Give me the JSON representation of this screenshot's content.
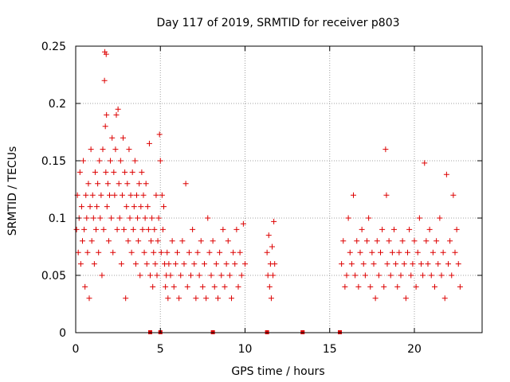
{
  "chart_data": {
    "type": "scatter",
    "title": "Day 117 of 2019, SRMTID for receiver p803",
    "xlabel": "GPS time / hours",
    "ylabel": "SRMTID / TECUs",
    "xlim": [
      0,
      24
    ],
    "ylim": [
      0,
      0.25
    ],
    "grid": true,
    "marker": "+",
    "color": "#dd0000",
    "x_ticks": [
      {
        "value": 0,
        "label": "0"
      },
      {
        "value": 5,
        "label": "5"
      },
      {
        "value": 10,
        "label": "10"
      },
      {
        "value": 15,
        "label": "15"
      },
      {
        "value": 20,
        "label": "20"
      }
    ],
    "y_ticks": [
      {
        "value": 0,
        "label": "0"
      },
      {
        "value": 0.05,
        "label": "0.05"
      },
      {
        "value": 0.1,
        "label": "0.1"
      },
      {
        "value": 0.15,
        "label": "0.15"
      },
      {
        "value": 0.2,
        "label": "0.2"
      },
      {
        "value": 0.25,
        "label": "0.25"
      }
    ],
    "series": [
      {
        "name": "SRMTID",
        "points": [
          [
            0.05,
            0.09
          ],
          [
            0.1,
            0.12
          ],
          [
            0.15,
            0.07
          ],
          [
            0.2,
            0.1
          ],
          [
            0.25,
            0.14
          ],
          [
            0.3,
            0.06
          ],
          [
            0.35,
            0.11
          ],
          [
            0.4,
            0.08
          ],
          [
            0.45,
            0.15
          ],
          [
            0.5,
            0.09
          ],
          [
            0.55,
            0.04
          ],
          [
            0.6,
            0.12
          ],
          [
            0.65,
            0.1
          ],
          [
            0.7,
            0.07
          ],
          [
            0.75,
            0.13
          ],
          [
            0.8,
            0.03
          ],
          [
            0.85,
            0.11
          ],
          [
            0.9,
            0.16
          ],
          [
            0.95,
            0.08
          ],
          [
            1.0,
            0.12
          ],
          [
            1.05,
            0.1
          ],
          [
            1.1,
            0.06
          ],
          [
            1.15,
            0.14
          ],
          [
            1.2,
            0.09
          ],
          [
            1.25,
            0.11
          ],
          [
            1.3,
            0.13
          ],
          [
            1.35,
            0.07
          ],
          [
            1.4,
            0.15
          ],
          [
            1.45,
            0.1
          ],
          [
            1.5,
            0.12
          ],
          [
            1.55,
            0.05
          ],
          [
            1.6,
            0.16
          ],
          [
            1.65,
            0.09
          ],
          [
            1.7,
            0.22
          ],
          [
            1.72,
            0.245
          ],
          [
            1.75,
            0.18
          ],
          [
            1.78,
            0.14
          ],
          [
            1.8,
            0.243
          ],
          [
            1.82,
            0.19
          ],
          [
            1.85,
            0.11
          ],
          [
            1.9,
            0.13
          ],
          [
            1.95,
            0.08
          ],
          [
            2.0,
            0.12
          ],
          [
            2.05,
            0.15
          ],
          [
            2.1,
            0.1
          ],
          [
            2.15,
            0.17
          ],
          [
            2.2,
            0.07
          ],
          [
            2.25,
            0.14
          ],
          [
            2.3,
            0.12
          ],
          [
            2.35,
            0.16
          ],
          [
            2.4,
            0.19
          ],
          [
            2.45,
            0.09
          ],
          [
            2.5,
            0.195
          ],
          [
            2.55,
            0.13
          ],
          [
            2.6,
            0.1
          ],
          [
            2.65,
            0.15
          ],
          [
            2.7,
            0.06
          ],
          [
            2.75,
            0.12
          ],
          [
            2.8,
            0.17
          ],
          [
            2.85,
            0.09
          ],
          [
            2.9,
            0.14
          ],
          [
            2.95,
            0.03
          ],
          [
            3.0,
            0.11
          ],
          [
            3.05,
            0.13
          ],
          [
            3.1,
            0.08
          ],
          [
            3.15,
            0.16
          ],
          [
            3.2,
            0.1
          ],
          [
            3.25,
            0.12
          ],
          [
            3.3,
            0.07
          ],
          [
            3.35,
            0.14
          ],
          [
            3.4,
            0.09
          ],
          [
            3.45,
            0.11
          ],
          [
            3.5,
            0.15
          ],
          [
            3.55,
            0.06
          ],
          [
            3.6,
            0.12
          ],
          [
            3.65,
            0.1
          ],
          [
            3.7,
            0.08
          ],
          [
            3.75,
            0.13
          ],
          [
            3.8,
            0.05
          ],
          [
            3.85,
            0.11
          ],
          [
            3.9,
            0.14
          ],
          [
            3.95,
            0.09
          ],
          [
            4.0,
            0.12
          ],
          [
            4.05,
            0.07
          ],
          [
            4.1,
            0.1
          ],
          [
            4.15,
            0.13
          ],
          [
            4.2,
            0.06
          ],
          [
            4.25,
            0.11
          ],
          [
            4.3,
            0.09
          ],
          [
            4.35,
            0.165
          ],
          [
            4.4,
            0.05
          ],
          [
            4.45,
            0.08
          ],
          [
            4.5,
            0.1
          ],
          [
            4.55,
            0.04
          ],
          [
            4.6,
            0.07
          ],
          [
            4.65,
            0.09
          ],
          [
            4.7,
            0.06
          ],
          [
            4.75,
            0.12
          ],
          [
            4.8,
            0.05
          ],
          [
            4.85,
            0.08
          ],
          [
            4.9,
            0.1
          ],
          [
            4.95,
            0.173
          ],
          [
            5.0,
            0.15
          ],
          [
            5.05,
            0.07
          ],
          [
            5.1,
            0.12
          ],
          [
            5.15,
            0.09
          ],
          [
            5.2,
            0.11
          ],
          [
            5.25,
            0.06
          ],
          [
            5.3,
            0.04
          ],
          [
            5.35,
            0.05
          ],
          [
            5.4,
            0.07
          ],
          [
            5.45,
            0.03
          ],
          [
            5.5,
            0.06
          ],
          [
            5.6,
            0.05
          ],
          [
            5.7,
            0.08
          ],
          [
            5.8,
            0.04
          ],
          [
            5.9,
            0.06
          ],
          [
            6.0,
            0.07
          ],
          [
            6.1,
            0.03
          ],
          [
            6.2,
            0.05
          ],
          [
            6.3,
            0.08
          ],
          [
            6.4,
            0.06
          ],
          [
            6.5,
            0.13
          ],
          [
            6.6,
            0.04
          ],
          [
            6.7,
            0.07
          ],
          [
            6.8,
            0.05
          ],
          [
            6.9,
            0.09
          ],
          [
            7.0,
            0.06
          ],
          [
            7.1,
            0.03
          ],
          [
            7.2,
            0.07
          ],
          [
            7.3,
            0.05
          ],
          [
            7.4,
            0.08
          ],
          [
            7.5,
            0.04
          ],
          [
            7.6,
            0.06
          ],
          [
            7.7,
            0.03
          ],
          [
            7.8,
            0.1
          ],
          [
            7.9,
            0.07
          ],
          [
            8.0,
            0.05
          ],
          [
            8.1,
            0.08
          ],
          [
            8.2,
            0.04
          ],
          [
            8.3,
            0.06
          ],
          [
            8.4,
            0.03
          ],
          [
            8.5,
            0.07
          ],
          [
            8.6,
            0.05
          ],
          [
            8.7,
            0.09
          ],
          [
            8.8,
            0.04
          ],
          [
            8.9,
            0.06
          ],
          [
            9.0,
            0.08
          ],
          [
            9.1,
            0.05
          ],
          [
            9.2,
            0.03
          ],
          [
            9.3,
            0.07
          ],
          [
            9.4,
            0.06
          ],
          [
            9.5,
            0.09
          ],
          [
            9.6,
            0.04
          ],
          [
            9.7,
            0.07
          ],
          [
            9.8,
            0.05
          ],
          [
            9.9,
            0.095
          ],
          [
            10.0,
            0.06
          ],
          [
            11.3,
            0.07
          ],
          [
            11.35,
            0.05
          ],
          [
            11.4,
            0.085
          ],
          [
            11.45,
            0.04
          ],
          [
            11.5,
            0.06
          ],
          [
            11.55,
            0.03
          ],
          [
            11.6,
            0.075
          ],
          [
            11.65,
            0.05
          ],
          [
            11.7,
            0.097
          ],
          [
            11.75,
            0.06
          ],
          [
            15.7,
            0.06
          ],
          [
            15.8,
            0.08
          ],
          [
            15.9,
            0.04
          ],
          [
            16.0,
            0.05
          ],
          [
            16.1,
            0.1
          ],
          [
            16.2,
            0.07
          ],
          [
            16.3,
            0.06
          ],
          [
            16.4,
            0.12
          ],
          [
            16.5,
            0.05
          ],
          [
            16.6,
            0.08
          ],
          [
            16.7,
            0.04
          ],
          [
            16.8,
            0.07
          ],
          [
            16.9,
            0.09
          ],
          [
            17.0,
            0.06
          ],
          [
            17.1,
            0.05
          ],
          [
            17.2,
            0.08
          ],
          [
            17.3,
            0.1
          ],
          [
            17.4,
            0.04
          ],
          [
            17.5,
            0.07
          ],
          [
            17.6,
            0.06
          ],
          [
            17.7,
            0.03
          ],
          [
            17.8,
            0.08
          ],
          [
            17.9,
            0.05
          ],
          [
            18.0,
            0.07
          ],
          [
            18.1,
            0.09
          ],
          [
            18.2,
            0.04
          ],
          [
            18.3,
            0.16
          ],
          [
            18.35,
            0.12
          ],
          [
            18.4,
            0.06
          ],
          [
            18.5,
            0.08
          ],
          [
            18.6,
            0.05
          ],
          [
            18.7,
            0.07
          ],
          [
            18.8,
            0.09
          ],
          [
            18.9,
            0.06
          ],
          [
            19.0,
            0.04
          ],
          [
            19.1,
            0.07
          ],
          [
            19.2,
            0.05
          ],
          [
            19.3,
            0.08
          ],
          [
            19.4,
            0.06
          ],
          [
            19.5,
            0.03
          ],
          [
            19.6,
            0.07
          ],
          [
            19.7,
            0.09
          ],
          [
            19.8,
            0.05
          ],
          [
            19.9,
            0.06
          ],
          [
            20.0,
            0.08
          ],
          [
            20.1,
            0.04
          ],
          [
            20.2,
            0.07
          ],
          [
            20.3,
            0.1
          ],
          [
            20.4,
            0.06
          ],
          [
            20.5,
            0.05
          ],
          [
            20.6,
            0.148
          ],
          [
            20.7,
            0.08
          ],
          [
            20.8,
            0.06
          ],
          [
            20.9,
            0.09
          ],
          [
            21.0,
            0.05
          ],
          [
            21.1,
            0.07
          ],
          [
            21.2,
            0.04
          ],
          [
            21.3,
            0.08
          ],
          [
            21.4,
            0.06
          ],
          [
            21.5,
            0.1
          ],
          [
            21.6,
            0.05
          ],
          [
            21.7,
            0.07
          ],
          [
            21.8,
            0.03
          ],
          [
            21.9,
            0.138
          ],
          [
            22.0,
            0.06
          ],
          [
            22.1,
            0.08
          ],
          [
            22.2,
            0.05
          ],
          [
            22.3,
            0.12
          ],
          [
            22.4,
            0.07
          ],
          [
            22.5,
            0.09
          ],
          [
            22.6,
            0.06
          ],
          [
            22.7,
            0.04
          ]
        ]
      }
    ],
    "zero_markers_x": [
      4.4,
      5.0,
      8.1,
      11.3,
      13.4,
      15.6
    ]
  }
}
